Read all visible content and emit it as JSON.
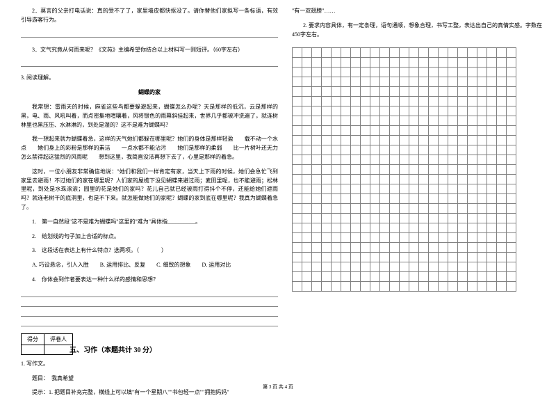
{
  "left": {
    "q2": "2．莫言的父亲打电话说：真的受不了了，家里墙皮都快抠没了。请你替他们家拟写一条标语，有效引导游客行为。",
    "q3": "3．文气究竟从何而来呢？《文苑》主编希望你结合以上材料写一则短评。（60字左右）",
    "reading_num": "3. 阅读理解。",
    "reading_title": "蝴蝶的家",
    "p1": "我常想：雷雨天的时候，麻雀这些鸟都要躲避起来，蝴蝶怎么办呢？天是那样的低沉，云是那样的黑，电、雨、风吼叫着，而点密集地喧嚷着，风将银色的雨幕斜挂起来，世界几乎都被冲洗遍了，就连树林里也黑压压、水淋淋的，到处是湿的？这不是难为蝴蝶吗？",
    "p2": "我一想起来就为蝴蝶着急，这样的天气她们都躲在哪里呢？她们的身体是那样轻盈　　载不动一个水点　　她们身上的彩粉是那样的素洁　　一点水都不能沾污　　她们是那样的柔弱　　比一片树叶还无力　　怎么禁得起这猛烈的风雨呢　　想到这里，我简直没法再想下去了，心里是那样的着急。",
    "p3": "这时，一位小朋友非常确信地说：\"她们和我们一样肯定有家，当天上下雨的时候，她们会急忙飞到家里去避雨！不过她们的家在哪里呢？人们家的屋檐下没见蝴蝶来避过雨；麦田里呢，也不能避雨；松林里呢，到处是水珠滚滚；园里的花是她们的家吗？花儿自己就已经被雨打得抖个不停，还能给她们遮雨吗？就连老树干的底洞里，也是不下来。就怎能做她们的家呢？蝴蝶的家到底在哪里呢？我真为蝴蝶着急了。",
    "items": {
      "i1": "1.　第一自然段\"这不是难为蝴蝶吗\"这里的\"难为\"具体指__________。",
      "i2": "2.　给划线的句子加上合适的标点。",
      "i3": "3.　这段话在表达上有什么特点？选两项。（　　　　）",
      "i3_opts": "A. 巧设悬念，引人入胜　　B. 运用排比、反复　　C. 细致的想象　　D. 运用对比",
      "i4": "4.　你体会到作者要表达一种什么样的感情和思想？"
    },
    "score_labels": {
      "a": "得分",
      "b": "评卷人"
    },
    "section5": "五、习作（本题共计 30 分）",
    "composition": {
      "num": "1. 写作文。",
      "topic": "题目：　我真希望",
      "hint": "提示：1. 把题目补充完整，横线上可以填\"有一个星期八\"\"书包轻一点\"\"拥抱妈妈\""
    }
  },
  "right": {
    "hint_continue": "\"有一双翅膀\"……",
    "hint2": "2. 要求内容具体，有一定条理，语句通顺，想象合理，书写工整，表达出自己的真情实感。字数在450字左右。",
    "grid": {
      "rows": 25,
      "cols": 23
    }
  },
  "footer": "第 3 页 共 4 页",
  "colors": {
    "grid_border": "#808080",
    "text": "#000000",
    "bg": "#ffffff"
  }
}
